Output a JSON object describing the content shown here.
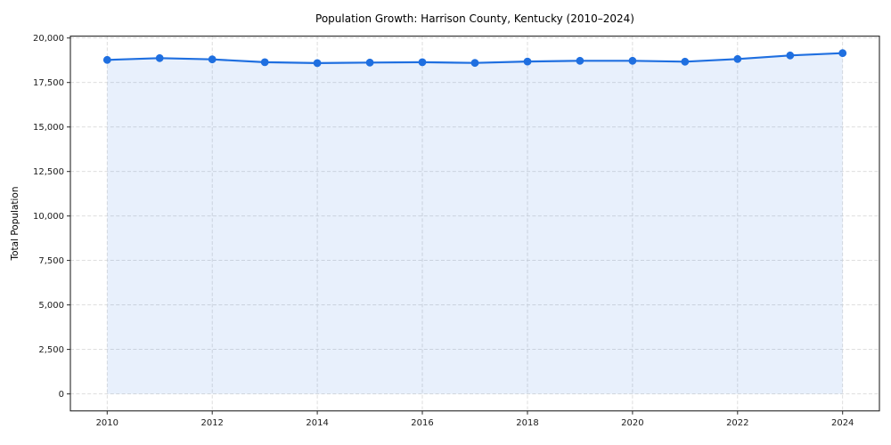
{
  "chart_data": {
    "type": "area",
    "title": "Population Growth: Harrison County, Kentucky (2010–2024)",
    "xlabel": "",
    "ylabel": "Total Population",
    "x": [
      2010,
      2011,
      2012,
      2013,
      2014,
      2015,
      2016,
      2017,
      2018,
      2019,
      2020,
      2021,
      2022,
      2023,
      2024
    ],
    "values": [
      18770,
      18870,
      18800,
      18640,
      18590,
      18620,
      18640,
      18600,
      18680,
      18720,
      18720,
      18670,
      18820,
      19020,
      19150
    ],
    "series_name": "Total Population",
    "x_ticks": [
      2010,
      2012,
      2014,
      2016,
      2018,
      2020,
      2022,
      2024
    ],
    "x_tick_labels": [
      "2010",
      "2012",
      "2014",
      "2016",
      "2018",
      "2020",
      "2022",
      "2024"
    ],
    "y_ticks": [
      0,
      2500,
      5000,
      7500,
      10000,
      12500,
      15000,
      17500,
      20000
    ],
    "y_tick_labels": [
      "0",
      "2,500",
      "5,000",
      "7,500",
      "10,000",
      "12,500",
      "15,000",
      "17,500",
      "20,000"
    ],
    "xlim": [
      2009.3,
      2024.7
    ],
    "ylim": [
      -957,
      20107
    ],
    "fill_baseline": 0,
    "grid": true,
    "legend_position": "none",
    "colors": {
      "line": "#1f6fe0",
      "marker": "#1f6fe0",
      "fill": "#1f6fe0",
      "fill_opacity": 0.1,
      "grid": "#d9d9d9",
      "spine": "#262626",
      "text": "#1a1a1a"
    }
  }
}
